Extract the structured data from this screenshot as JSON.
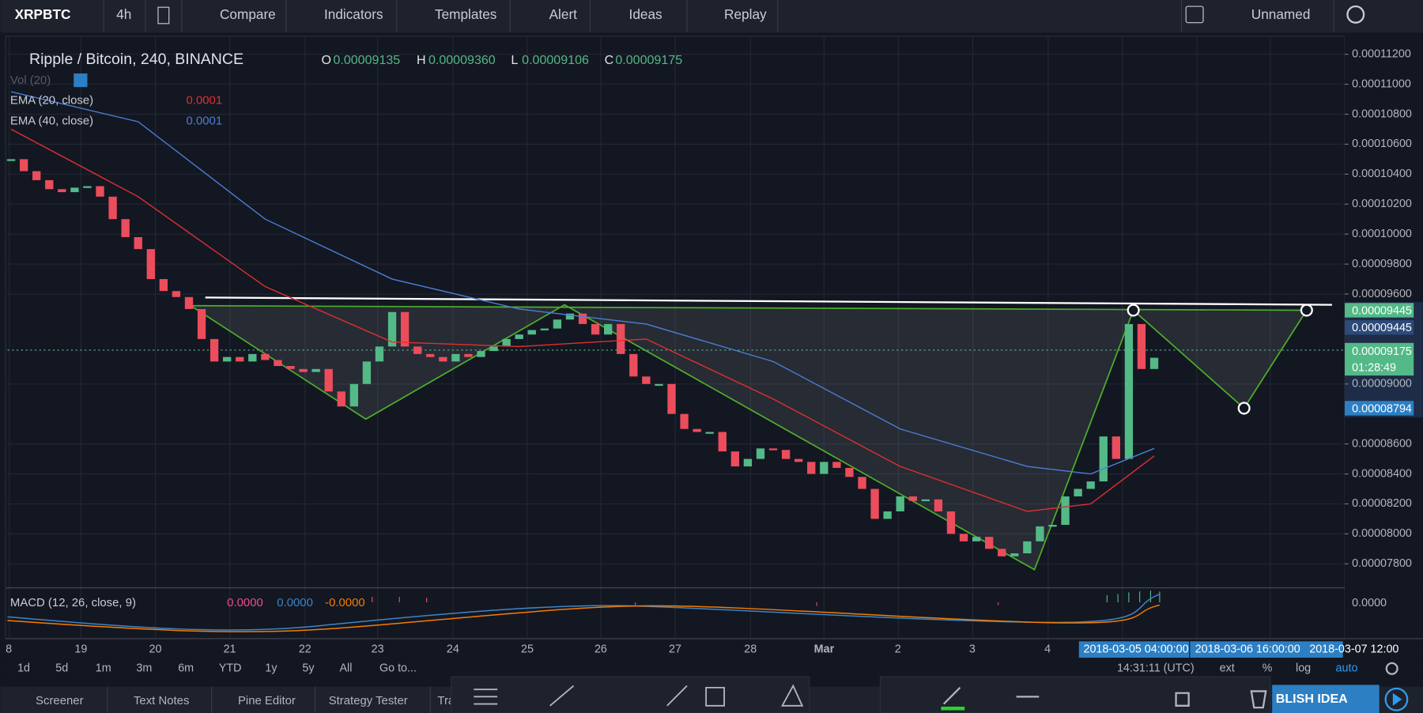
{
  "toolbar": {
    "symbol": "XRPBTC",
    "interval": "4h",
    "items": [
      "Compare",
      "Indicators",
      "Templates",
      "Alert",
      "Ideas",
      "Replay"
    ],
    "layout": "Unnamed"
  },
  "legend": {
    "title": "Ripple / Bitcoin, 240, BINANCE",
    "ohlc": [
      [
        "O",
        "0.00009135"
      ],
      [
        "H",
        "0.00009360"
      ],
      [
        "L",
        "0.00009106"
      ],
      [
        "C",
        "0.00009175"
      ]
    ],
    "volume": "Vol (20)",
    "ema20": {
      "label": "EMA (20, close)",
      "value": "0.0001"
    },
    "ema40": {
      "label": "EMA (40, close)",
      "value": "0.0001"
    }
  },
  "chart": {
    "ylim": [
      7.64e-05,
      0.0001132
    ],
    "yticks": [
      {
        "value": 0.000112,
        "label": "0.00011200"
      },
      {
        "value": 0.00011,
        "label": "0.00011000"
      },
      {
        "value": 0.000108,
        "label": "0.00010800"
      },
      {
        "value": 0.000106,
        "label": "0.00010600"
      },
      {
        "value": 0.000104,
        "label": "0.00010400"
      },
      {
        "value": 0.000102,
        "label": "0.00010200"
      },
      {
        "value": 0.0001,
        "label": "0.00010000"
      },
      {
        "value": 9.8e-05,
        "label": "0.00009800"
      },
      {
        "value": 9.6e-05,
        "label": "0.00009600"
      },
      {
        "value": 9e-05,
        "label": "0.00009000"
      },
      {
        "value": 8.6e-05,
        "label": "0.00008600"
      },
      {
        "value": 8.4e-05,
        "label": "0.00008400"
      },
      {
        "value": 8.2e-05,
        "label": "0.00008200"
      },
      {
        "value": 8e-05,
        "label": "0.00008000"
      },
      {
        "value": 7.8e-05,
        "label": "0.00007800"
      }
    ],
    "up_color": "#53b987",
    "down_color": "#eb4d5c",
    "close": [
      0.000105,
      0.0001042,
      0.0001036,
      0.000103,
      0.0001028,
      0.0001031,
      0.0001032,
      0.0001025,
      0.000101,
      9.98e-05,
      9.9e-05,
      9.7e-05,
      9.62e-05,
      9.58e-05,
      9.5e-05,
      9.3e-05,
      9.15e-05,
      9.18e-05,
      9.15e-05,
      9.2e-05,
      9.16e-05,
      9.12e-05,
      9.1e-05,
      9.08e-05,
      9.1e-05,
      8.95e-05,
      8.85e-05,
      9e-05,
      9.15e-05,
      9.25e-05,
      9.48e-05,
      9.25e-05,
      9.2e-05,
      9.18e-05,
      9.15e-05,
      9.2e-05,
      9.18e-05,
      9.22e-05,
      9.25e-05,
      9.3e-05,
      9.33e-05,
      9.36e-05,
      9.37e-05,
      9.43e-05,
      9.47e-05,
      9.4e-05,
      9.33e-05,
      9.4e-05,
      9.2e-05,
      9.05e-05,
      9e-05,
      9e-05,
      8.8e-05,
      8.7e-05,
      8.68e-05,
      8.68e-05,
      8.55e-05,
      8.45e-05,
      8.5e-05,
      8.57e-05,
      8.56e-05,
      8.5e-05,
      8.48e-05,
      8.4e-05,
      8.48e-05,
      8.44e-05,
      8.38e-05,
      8.3e-05,
      8.1e-05,
      8.15e-05,
      8.25e-05,
      8.22e-05,
      8.23e-05,
      8.15e-05,
      8e-05,
      7.95e-05,
      7.98e-05,
      7.9e-05,
      7.85e-05,
      7.87e-05,
      7.95e-05,
      8.05e-05,
      8.06e-05,
      8.25e-05,
      8.3e-05,
      8.35e-05,
      8.65e-05,
      8.5e-05,
      9.4e-05,
      9.1e-05,
      9.175e-05
    ],
    "ema20": {
      "color": "#e0302f",
      "x": [
        0,
        10,
        20,
        30,
        40,
        50,
        60,
        70,
        80,
        85,
        90
      ],
      "values": [
        0.000107,
        0.0001025,
        9.65e-05,
        9.28e-05,
        9.25e-05,
        9.3e-05,
        8.9e-05,
        8.45e-05,
        8.15e-05,
        8.2e-05,
        8.52e-05
      ]
    },
    "ema40": {
      "color": "#4a7fd6",
      "x": [
        0,
        10,
        20,
        30,
        40,
        50,
        60,
        70,
        80,
        85,
        90
      ],
      "values": [
        0.0001095,
        0.0001075,
        0.000101,
        9.7e-05,
        9.5e-05,
        9.4e-05,
        9.15e-05,
        8.7e-05,
        8.45e-05,
        8.4e-05,
        8.57e-05
      ]
    },
    "price_tags": [
      "0.00009445",
      "0.00009445",
      "0.00009175",
      "01:28:49",
      "0.00008794"
    ]
  },
  "macd": {
    "label": "MACD (12, 26, close, 9)",
    "values": [
      "0.0000",
      "0.0000",
      "-0.0000"
    ],
    "axis": "0.0000"
  },
  "time_axis": {
    "labels": [
      "8",
      "19",
      "20",
      "21",
      "22",
      "23",
      "24",
      "25",
      "26",
      "27",
      "28",
      "Mar",
      "2",
      "3",
      "4"
    ],
    "tags": [
      "2018-03-05 04:00:00",
      "2018-03-06 16:00:00",
      "2018-03-07 12:00"
    ]
  },
  "bottom_bar": {
    "ranges": [
      "1d",
      "5d",
      "1m",
      "3m",
      "6m",
      "YTD",
      "1y",
      "5y",
      "All",
      "Go to..."
    ],
    "clock": "14:31:11 (UTC)",
    "options": [
      "ext",
      "%",
      "log",
      "auto"
    ]
  },
  "tabs": [
    "Screener",
    "Text Notes",
    "Pine Editor",
    "Strategy Tester",
    "Tra"
  ],
  "publish": "BLISH IDEA"
}
